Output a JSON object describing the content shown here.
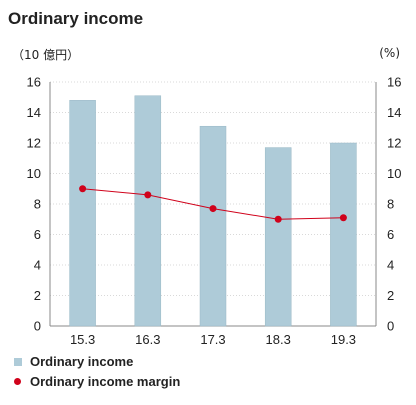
{
  "title": "Ordinary income",
  "left_unit": "（10 億円）",
  "right_unit": "(%)",
  "chart_data": {
    "type": "bar",
    "categories": [
      "15.3",
      "16.3",
      "17.3",
      "18.3",
      "19.3"
    ],
    "series": [
      {
        "name": "Ordinary income",
        "type": "bar",
        "axis": "left",
        "values": [
          14.8,
          15.1,
          13.1,
          11.7,
          12.0
        ]
      },
      {
        "name": "Ordinary income margin",
        "type": "line",
        "axis": "right",
        "values": [
          9.0,
          8.6,
          7.7,
          7.0,
          7.1
        ]
      }
    ],
    "ylim": [
      0,
      16
    ],
    "y2lim": [
      0,
      16
    ],
    "yticks": [
      0,
      2,
      4,
      6,
      8,
      10,
      12,
      14,
      16
    ],
    "grid": true,
    "legend_position": "bottom-left",
    "colors": {
      "bar": "#aecbd8",
      "bar_border": "#9ab8c6",
      "line": "#d0021b",
      "grid": "#d9d9d9",
      "axis": "#888888"
    }
  }
}
